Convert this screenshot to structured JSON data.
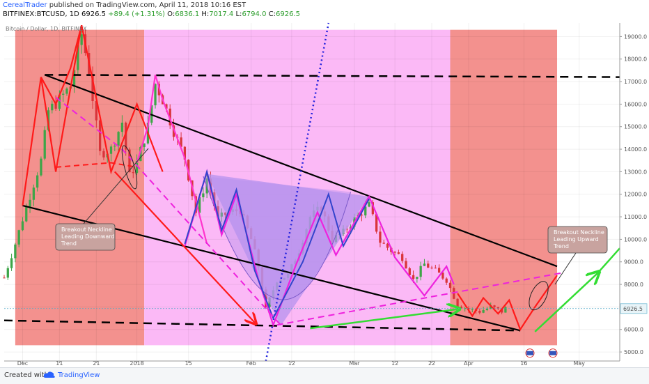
{
  "header": {
    "author": "CerealTrader",
    "published": "published on TradingView.com, April 11, 2018 10:16 EST",
    "symbol": "BITFINEX:BTCUSD, 1D",
    "last": "6926.5",
    "change": "+89.4 (+1.31%)",
    "o_label": "O:",
    "o": "6836.1",
    "h_label": "H:",
    "h": "7017.4",
    "l_label": "L:",
    "l": "6794.0",
    "c_label": "C:",
    "c": "6926.5"
  },
  "footer": {
    "created": "Created with",
    "brand": "TradingView"
  },
  "colors": {
    "up_candle": "#3ea548",
    "down_candle": "#d9343a",
    "red_zone": "#f3918e",
    "pink_zone": "#fbb9f6",
    "triangle_fill": "#b593ee",
    "price_label": "#e8f4f8"
  },
  "chart_data": {
    "type": "candlestick",
    "title": "Bitcoin / Dollar, 1D, BITFINEX",
    "price_label": "6926.5",
    "y_range": [
      4600,
      19600
    ],
    "y_ticks": [
      5000,
      6000,
      7000,
      8000,
      9000,
      10000,
      11000,
      12000,
      13000,
      14000,
      15000,
      16000,
      17000,
      18000,
      19000
    ],
    "y_tick_labels": [
      "5000.0",
      "6000.0",
      "7000.0",
      "8000.0",
      "9000.0",
      "10000.0",
      "11000.0",
      "12000.0",
      "13000.0",
      "14000.0",
      "15000.0",
      "16000.0",
      "17000.0",
      "18000.0",
      "19000.0"
    ],
    "x_range": [
      "2017-11-26",
      "2018-05-12"
    ],
    "x_ticks": [
      {
        "date": "2017-12-01",
        "label": "Dec"
      },
      {
        "date": "2017-12-11",
        "label": "11"
      },
      {
        "date": "2017-12-21",
        "label": "21"
      },
      {
        "date": "2018-01-01",
        "label": "2018"
      },
      {
        "date": "2018-01-15",
        "label": "15"
      },
      {
        "date": "2018-02-01",
        "label": "Feb"
      },
      {
        "date": "2018-02-12",
        "label": "12"
      },
      {
        "date": "2018-03-01",
        "label": "Mar"
      },
      {
        "date": "2018-03-12",
        "label": "12"
      },
      {
        "date": "2018-03-22",
        "label": "22"
      },
      {
        "date": "2018-04-01",
        "label": "Apr"
      },
      {
        "date": "2018-04-16",
        "label": "16"
      },
      {
        "date": "2018-05-01",
        "label": "May"
      }
    ],
    "close_path": [
      [
        "2017-11-26",
        8300
      ],
      [
        "2017-11-29",
        9800
      ],
      [
        "2017-12-01",
        10900
      ],
      [
        "2017-12-06",
        13500
      ],
      [
        "2017-12-08",
        15700
      ],
      [
        "2017-12-11",
        16200
      ],
      [
        "2017-12-14",
        16800
      ],
      [
        "2017-12-17",
        19100
      ],
      [
        "2017-12-19",
        17500
      ],
      [
        "2017-12-22",
        13800
      ],
      [
        "2017-12-25",
        14000
      ],
      [
        "2017-12-28",
        15200
      ],
      [
        "2017-12-30",
        12800
      ],
      [
        "2018-01-01",
        13400
      ],
      [
        "2018-01-04",
        15000
      ],
      [
        "2018-01-06",
        16900
      ],
      [
        "2018-01-08",
        16200
      ],
      [
        "2018-01-11",
        14800
      ],
      [
        "2018-01-14",
        13600
      ],
      [
        "2018-01-17",
        11200
      ],
      [
        "2018-01-20",
        12700
      ],
      [
        "2018-01-23",
        10900
      ],
      [
        "2018-01-26",
        11200
      ],
      [
        "2018-01-29",
        11300
      ],
      [
        "2018-02-01",
        10000
      ],
      [
        "2018-02-03",
        8800
      ],
      [
        "2018-02-05",
        6900
      ],
      [
        "2018-02-08",
        8200
      ],
      [
        "2018-02-11",
        8400
      ],
      [
        "2018-02-14",
        9500
      ],
      [
        "2018-02-17",
        11000
      ],
      [
        "2018-02-20",
        11400
      ],
      [
        "2018-02-23",
        10000
      ],
      [
        "2018-02-26",
        10300
      ],
      [
        "2018-03-01",
        10900
      ],
      [
        "2018-03-05",
        11500
      ],
      [
        "2018-03-08",
        9900
      ],
      [
        "2018-03-11",
        9500
      ],
      [
        "2018-03-14",
        9200
      ],
      [
        "2018-03-17",
        8200
      ],
      [
        "2018-03-20",
        8900
      ],
      [
        "2018-03-23",
        8600
      ],
      [
        "2018-03-26",
        8200
      ],
      [
        "2018-03-29",
        7100
      ],
      [
        "2018-04-01",
        6900
      ],
      [
        "2018-04-04",
        6800
      ],
      [
        "2018-04-07",
        7000
      ],
      [
        "2018-04-10",
        6800
      ],
      [
        "2018-04-11",
        6926.5
      ]
    ],
    "annotations": {
      "left_note": [
        "Breakout Neckline",
        "Leading Downward",
        "Trend"
      ],
      "right_note": [
        "Breakout Neckline",
        "Leading Upward",
        "Trend"
      ]
    }
  }
}
